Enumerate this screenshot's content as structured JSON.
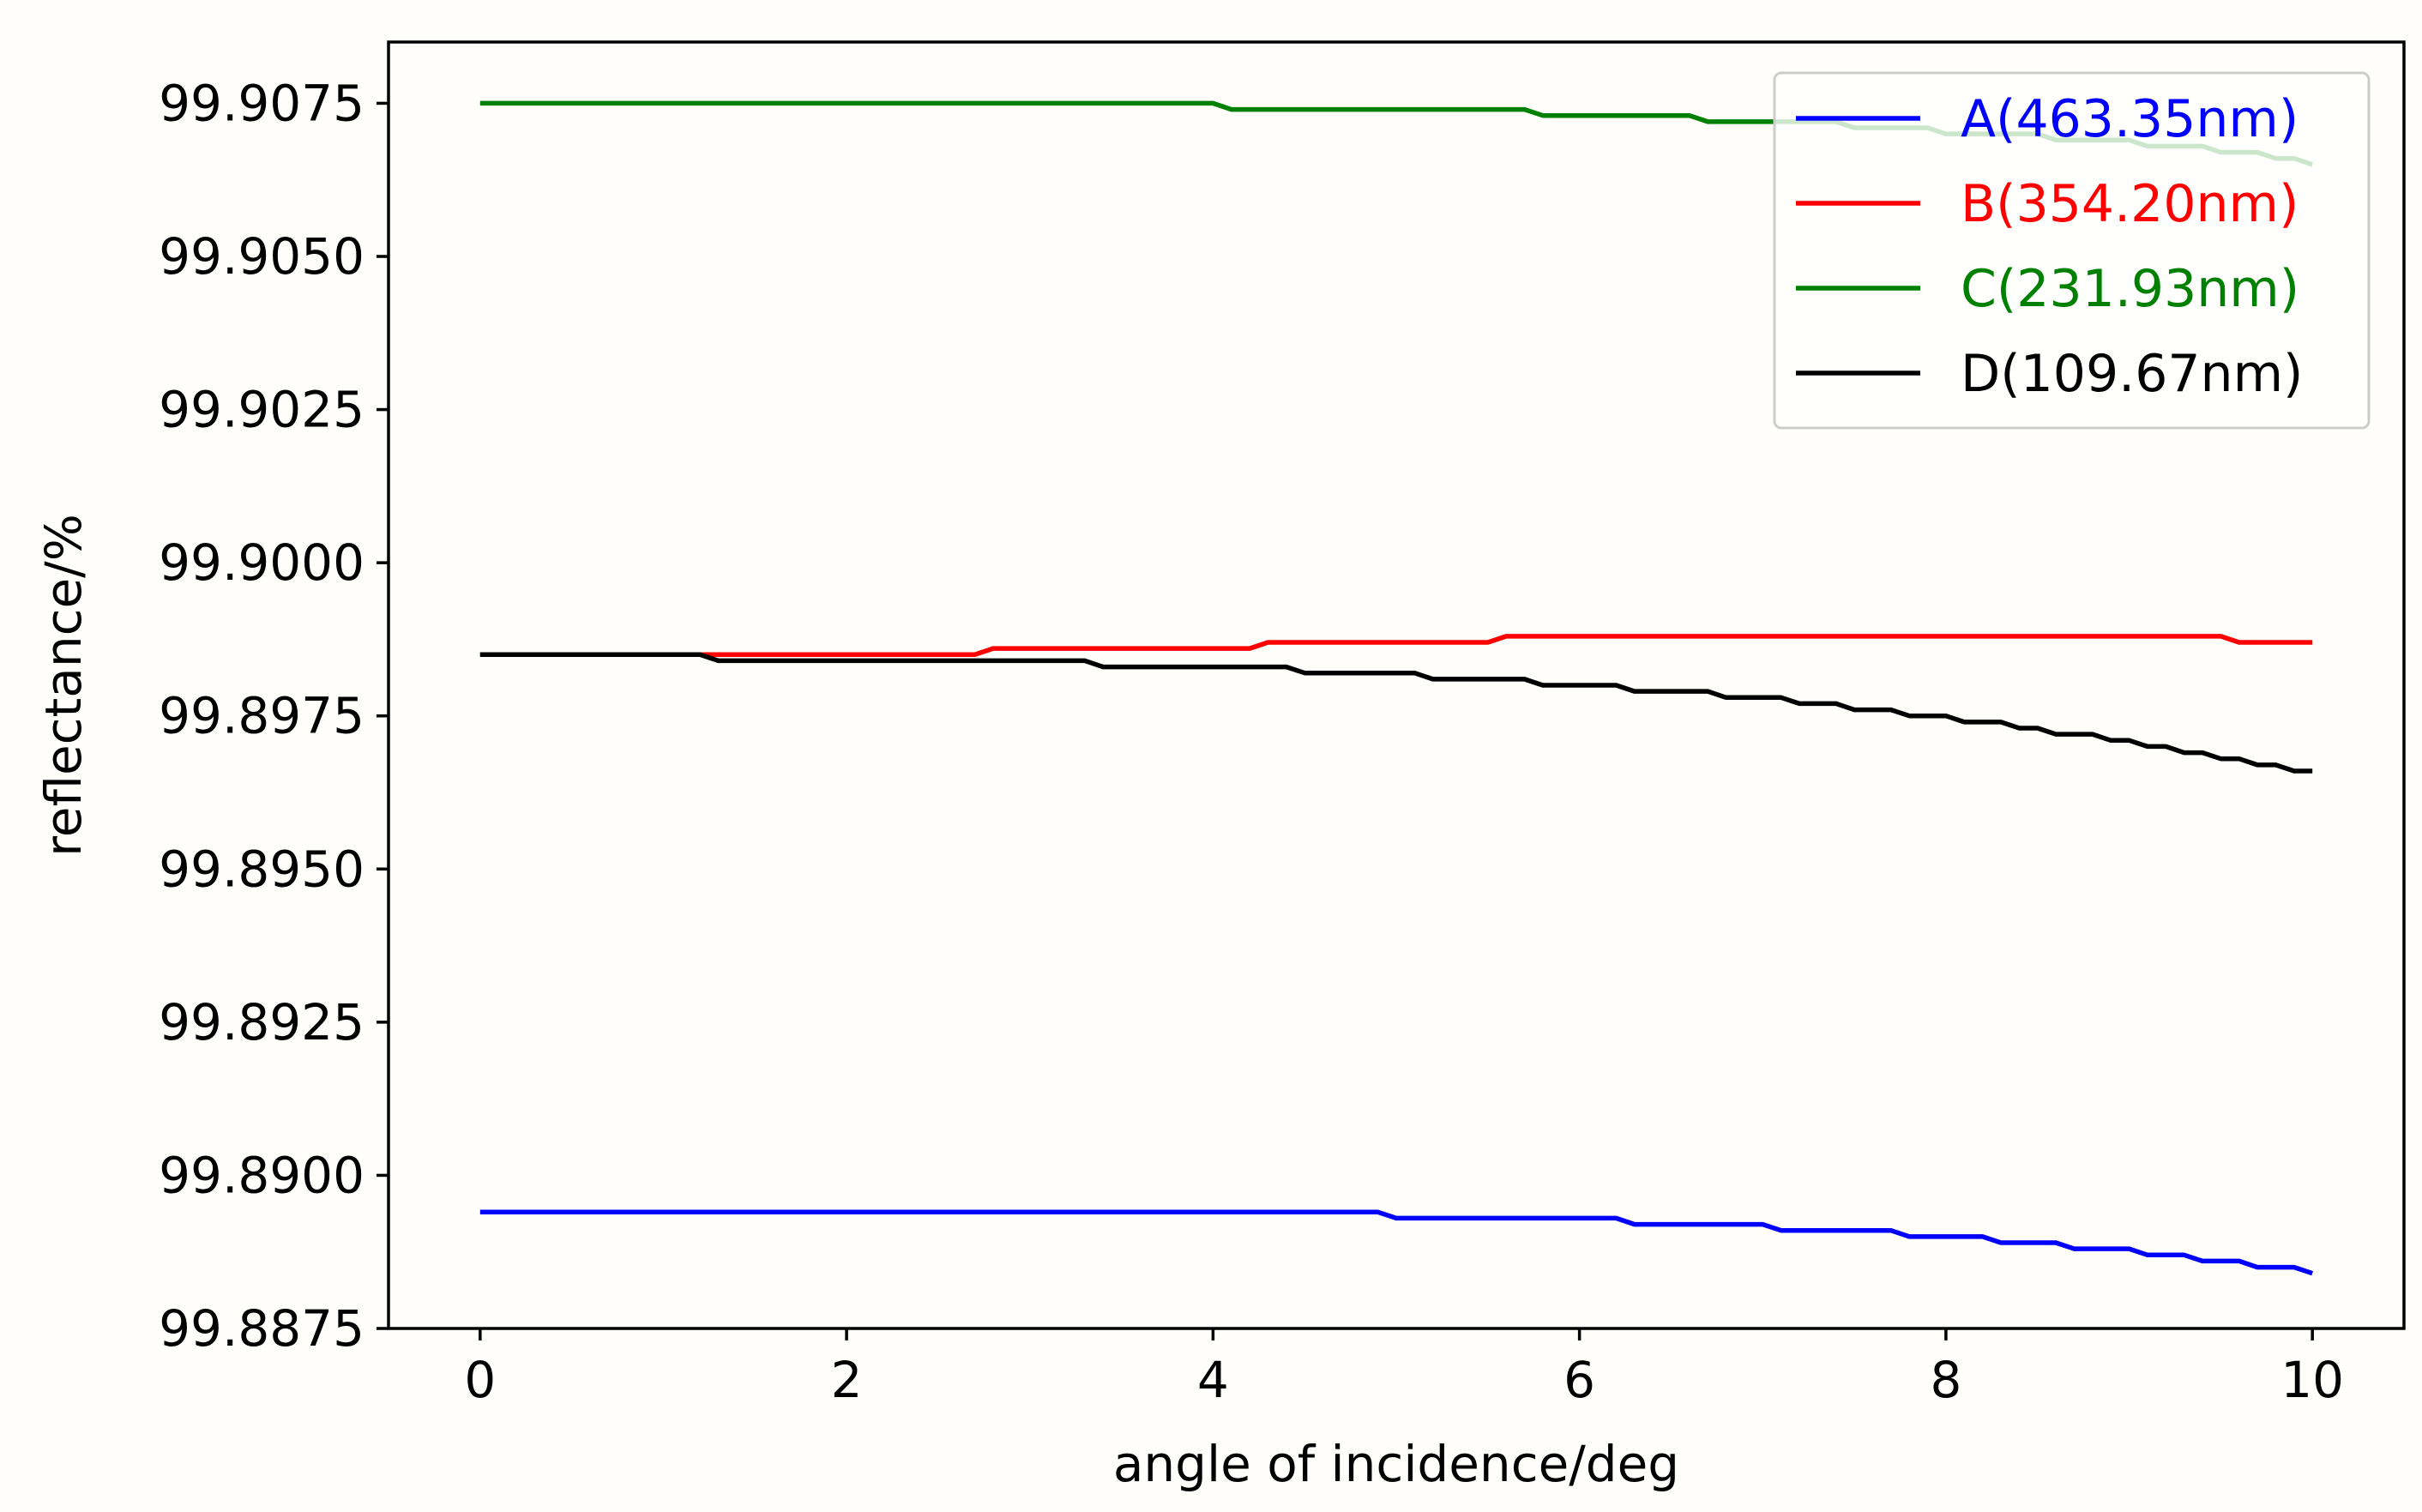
{
  "chart_data": {
    "type": "line",
    "title": "",
    "xlabel": "angle of incidence/deg",
    "ylabel": "reflectance/%",
    "xlim": [
      -0.5,
      10.5
    ],
    "ylim": [
      99.8875,
      99.9085
    ],
    "xticks": [
      0,
      2,
      4,
      6,
      8,
      10
    ],
    "xtick_labels": [
      "0",
      "2",
      "4",
      "6",
      "8",
      "10"
    ],
    "yticks": [
      99.8875,
      99.89,
      99.8925,
      99.895,
      99.8975,
      99.9,
      99.9025,
      99.905,
      99.9075
    ],
    "ytick_labels": [
      "99.8875",
      "99.8900",
      "99.8925",
      "99.8950",
      "99.8975",
      "99.9000",
      "99.9025",
      "99.9050",
      "99.9075"
    ],
    "legend_position": "top-right",
    "series": [
      {
        "name": "A(463.35nm)",
        "color": "#0000ff",
        "x": [
          0,
          4.9,
          5.0,
          6.2,
          6.3,
          7.0,
          7.1,
          7.7,
          7.8,
          8.2,
          8.3,
          8.6,
          8.7,
          9.0,
          9.1,
          9.3,
          9.4,
          9.6,
          9.7,
          9.9,
          10.0
        ],
        "y": [
          99.8894,
          99.8894,
          99.8893,
          99.8893,
          99.8892,
          99.8892,
          99.8891,
          99.8891,
          99.889,
          99.889,
          99.8889,
          99.8889,
          99.8888,
          99.8888,
          99.8887,
          99.8887,
          99.8886,
          99.8886,
          99.8885,
          99.8885,
          99.8884
        ]
      },
      {
        "name": "B(354.20nm)",
        "color": "#ff0000",
        "x": [
          0,
          2.7,
          2.8,
          4.2,
          4.3,
          5.5,
          5.6,
          9.5,
          9.6,
          10.0
        ],
        "y": [
          99.8985,
          99.8985,
          99.8986,
          99.8986,
          99.8987,
          99.8987,
          99.8988,
          99.8988,
          99.8987,
          99.8987
        ]
      },
      {
        "name": "C(231.93nm)",
        "color": "#008000",
        "x": [
          0,
          4.0,
          4.1,
          5.7,
          5.8,
          6.6,
          6.7,
          7.4,
          7.5,
          7.9,
          8.0,
          8.5,
          8.6,
          9.0,
          9.1,
          9.4,
          9.5,
          9.7,
          9.8,
          9.9,
          10.0
        ],
        "y": [
          99.9075,
          99.9075,
          99.9074,
          99.9074,
          99.9073,
          99.9073,
          99.9072,
          99.9072,
          99.9071,
          99.9071,
          99.907,
          99.907,
          99.9069,
          99.9069,
          99.9068,
          99.9068,
          99.9067,
          99.9067,
          99.9066,
          99.9066,
          99.9065
        ]
      },
      {
        "name": "D(109.67nm)",
        "color": "#000000",
        "x": [
          0,
          1.2,
          1.3,
          3.3,
          3.4,
          4.4,
          4.5,
          5.1,
          5.2,
          5.7,
          5.8,
          6.2,
          6.3,
          6.7,
          6.8,
          7.1,
          7.2,
          7.4,
          7.5,
          7.7,
          7.8,
          8.0,
          8.1,
          8.3,
          8.4,
          8.5,
          8.6,
          8.8,
          8.9,
          9.0,
          9.1,
          9.2,
          9.3,
          9.4,
          9.5,
          9.6,
          9.7,
          9.8,
          9.9,
          10.0
        ],
        "y": [
          99.8985,
          99.8985,
          99.8984,
          99.8984,
          99.8983,
          99.8983,
          99.8982,
          99.8982,
          99.8981,
          99.8981,
          99.898,
          99.898,
          99.8979,
          99.8979,
          99.8978,
          99.8978,
          99.8977,
          99.8977,
          99.8976,
          99.8976,
          99.8975,
          99.8975,
          99.8974,
          99.8974,
          99.8973,
          99.8973,
          99.8972,
          99.8972,
          99.8971,
          99.8971,
          99.897,
          99.897,
          99.8969,
          99.8969,
          99.8968,
          99.8968,
          99.8967,
          99.8967,
          99.8966,
          99.8966
        ]
      }
    ]
  }
}
